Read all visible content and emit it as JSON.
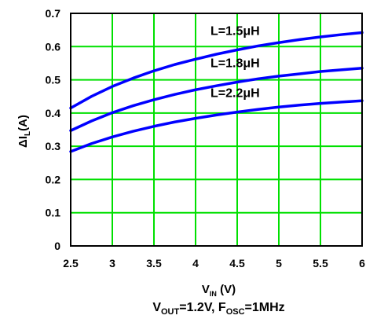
{
  "chart_data": {
    "type": "line",
    "title": "",
    "caption": {
      "v": "V",
      "v_sub": "OUT",
      "v_rest": "=1.2V, F",
      "f_sub": "OSC",
      "f_rest": "=1MHz"
    },
    "xlabel": {
      "main": "V",
      "sub": "IN",
      "rest": " (V)"
    },
    "ylabel": {
      "main": "ΔI",
      "sub": "L",
      "rest": "(A)"
    },
    "xlim": [
      2.5,
      6
    ],
    "ylim": [
      0,
      0.7
    ],
    "x_ticks": [
      2.5,
      3,
      3.5,
      4,
      4.5,
      5,
      5.5,
      6
    ],
    "y_ticks": [
      0,
      0.1,
      0.2,
      0.3,
      0.4,
      0.5,
      0.6,
      0.7
    ],
    "x_tick_labels": [
      "2.5",
      "3",
      "3.5",
      "4",
      "4.5",
      "5",
      "5.5",
      "6"
    ],
    "y_tick_labels": [
      "0",
      "0.1",
      "0.2",
      "0.3",
      "0.4",
      "0.5",
      "0.6",
      "0.7"
    ],
    "grid": true,
    "x": [
      2.5,
      2.75,
      3,
      3.25,
      3.5,
      3.75,
      4,
      4.25,
      4.5,
      4.75,
      5,
      5.25,
      5.5,
      5.75,
      6
    ],
    "series": [
      {
        "name": "L=1.5μH",
        "values": [
          0.415,
          0.45,
          0.48,
          0.505,
          0.527,
          0.546,
          0.562,
          0.577,
          0.59,
          0.602,
          0.612,
          0.621,
          0.629,
          0.636,
          0.642
        ]
      },
      {
        "name": "L=1.8μH",
        "values": [
          0.347,
          0.376,
          0.401,
          0.422,
          0.44,
          0.456,
          0.47,
          0.482,
          0.493,
          0.503,
          0.511,
          0.518,
          0.525,
          0.53,
          0.535
        ]
      },
      {
        "name": "L=2.2μH",
        "values": [
          0.284,
          0.308,
          0.328,
          0.345,
          0.36,
          0.373,
          0.384,
          0.394,
          0.403,
          0.411,
          0.418,
          0.424,
          0.429,
          0.433,
          0.437
        ]
      }
    ],
    "colors": {
      "background": "#ffffff",
      "grid": "#00e000",
      "series": "#0000ff",
      "axes": "#000000"
    }
  }
}
